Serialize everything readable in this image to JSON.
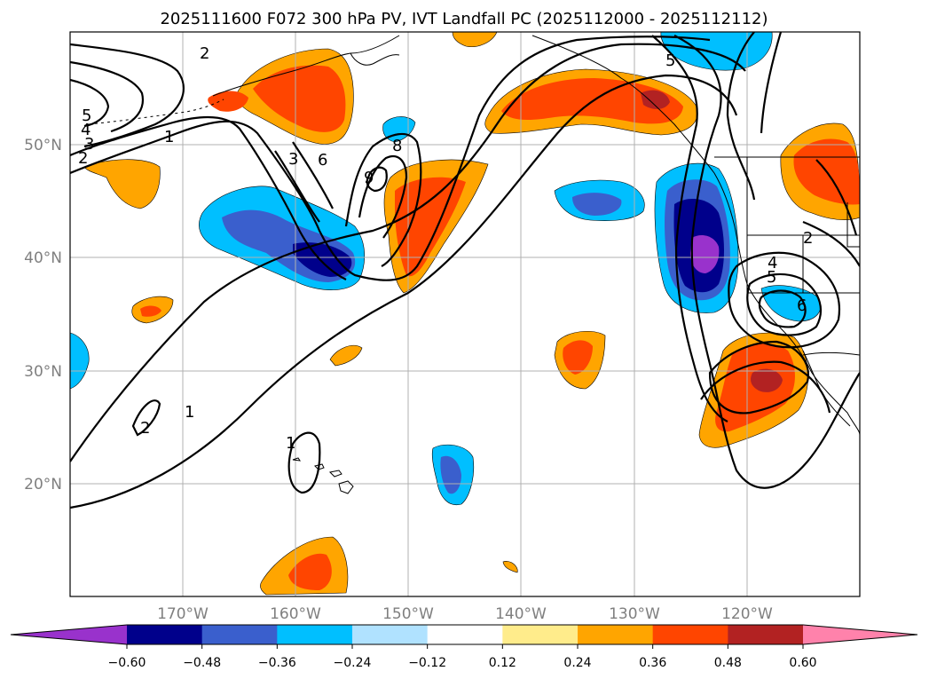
{
  "title": "2025111600 F072 300 hPa PV, IVT Landfall PC (2025112000 - 2025112112)",
  "map": {
    "lon_range": [
      -180,
      -110
    ],
    "lat_range": [
      10,
      60
    ],
    "lon_ticks": [
      {
        "value": -170,
        "label": "170°W"
      },
      {
        "value": -160,
        "label": "160°W"
      },
      {
        "value": -150,
        "label": "150°W"
      },
      {
        "value": -140,
        "label": "140°W"
      },
      {
        "value": -130,
        "label": "130°W"
      },
      {
        "value": -120,
        "label": "120°W"
      }
    ],
    "lat_ticks": [
      {
        "value": 50,
        "label": "50°N"
      },
      {
        "value": 40,
        "label": "40°N"
      },
      {
        "value": 30,
        "label": "30°N"
      },
      {
        "value": 20,
        "label": "20°N"
      }
    ],
    "contour_labels": [
      "2",
      "5",
      "4",
      "3",
      "2",
      "1",
      "3",
      "6",
      "8",
      "9",
      "2",
      "1",
      "1",
      "5",
      "2",
      "4",
      "5",
      "6"
    ]
  },
  "colorbar": {
    "levels": [
      "−0.60",
      "−0.48",
      "−0.36",
      "−0.24",
      "−0.12",
      "0.12",
      "0.24",
      "0.36",
      "0.48",
      "0.60"
    ],
    "colors": [
      "#9932cc",
      "#00008b",
      "#3a5fcd",
      "#00bfff",
      "#b0e2ff",
      "#ffffff",
      "#ffec8b",
      "#ffa500",
      "#ff4500",
      "#b22222",
      "#ff82ab"
    ]
  },
  "colors": {
    "gridline": "#b0b0b0",
    "coast": "#000000"
  }
}
